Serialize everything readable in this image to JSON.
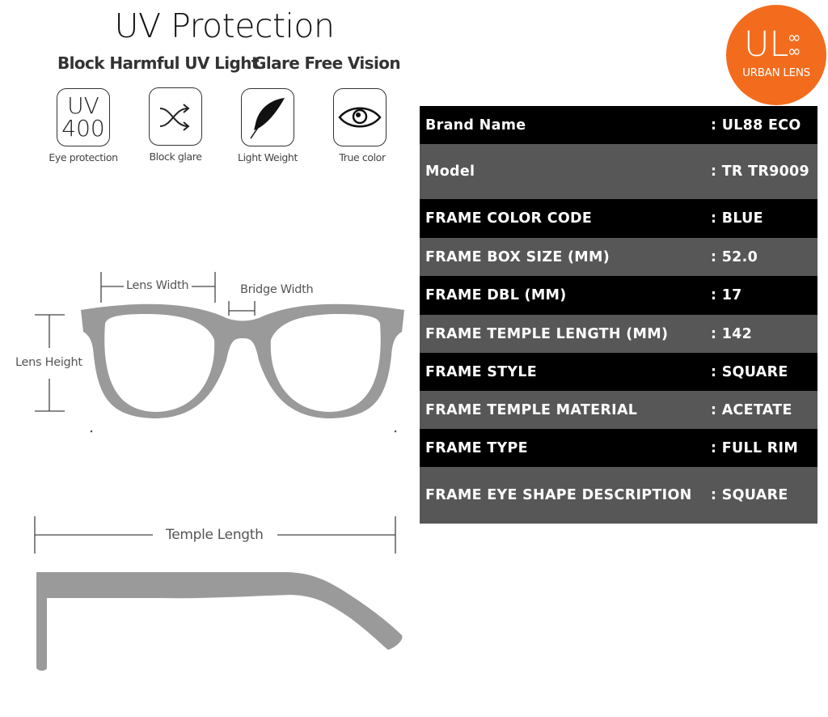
{
  "banner": {
    "title": "UV Protection",
    "subtitle_left": "Block Harmful UV Light",
    "subtitle_right": "Glare Free Vision",
    "features": [
      {
        "icon": "uv400-icon",
        "icon_text_top": "UV",
        "icon_text_bottom": "400",
        "label": "Eye protection"
      },
      {
        "icon": "shuffle-arrows-icon",
        "label": "Block glare"
      },
      {
        "icon": "feather-icon",
        "label": "Light Weight"
      },
      {
        "icon": "eye-icon",
        "label": "True color"
      }
    ]
  },
  "diagram": {
    "lens_width": "Lens Width",
    "bridge_width": "Bridge Width",
    "lens_height": "Lens Height",
    "temple_length": "Temple Length",
    "frame_color": "#9a9a9a"
  },
  "logo": {
    "initials": "UL",
    "symbol": "∞∞",
    "name": "URBAN LENS",
    "color": "#f36c1d"
  },
  "specs": [
    {
      "label": "Brand Name",
      "value": ": UL88 ECO"
    },
    {
      "label": "Model",
      "value": ": TR TR9009"
    },
    {
      "label": "FRAME COLOR CODE",
      "value": ": BLUE"
    },
    {
      "label": "FRAME BOX SIZE (MM)",
      "value": ": 52.0"
    },
    {
      "label": "FRAME DBL (MM)",
      "value": ": 17"
    },
    {
      "label": "FRAME TEMPLE LENGTH (MM)",
      "value": ": 142"
    },
    {
      "label": "FRAME STYLE",
      "value": ": SQUARE"
    },
    {
      "label": "FRAME TEMPLE MATERIAL",
      "value": ": ACETATE"
    },
    {
      "label": "FRAME TYPE",
      "value": ": FULL RIM"
    },
    {
      "label": "FRAME EYE SHAPE DESCRIPTION",
      "value": ": SQUARE"
    }
  ]
}
